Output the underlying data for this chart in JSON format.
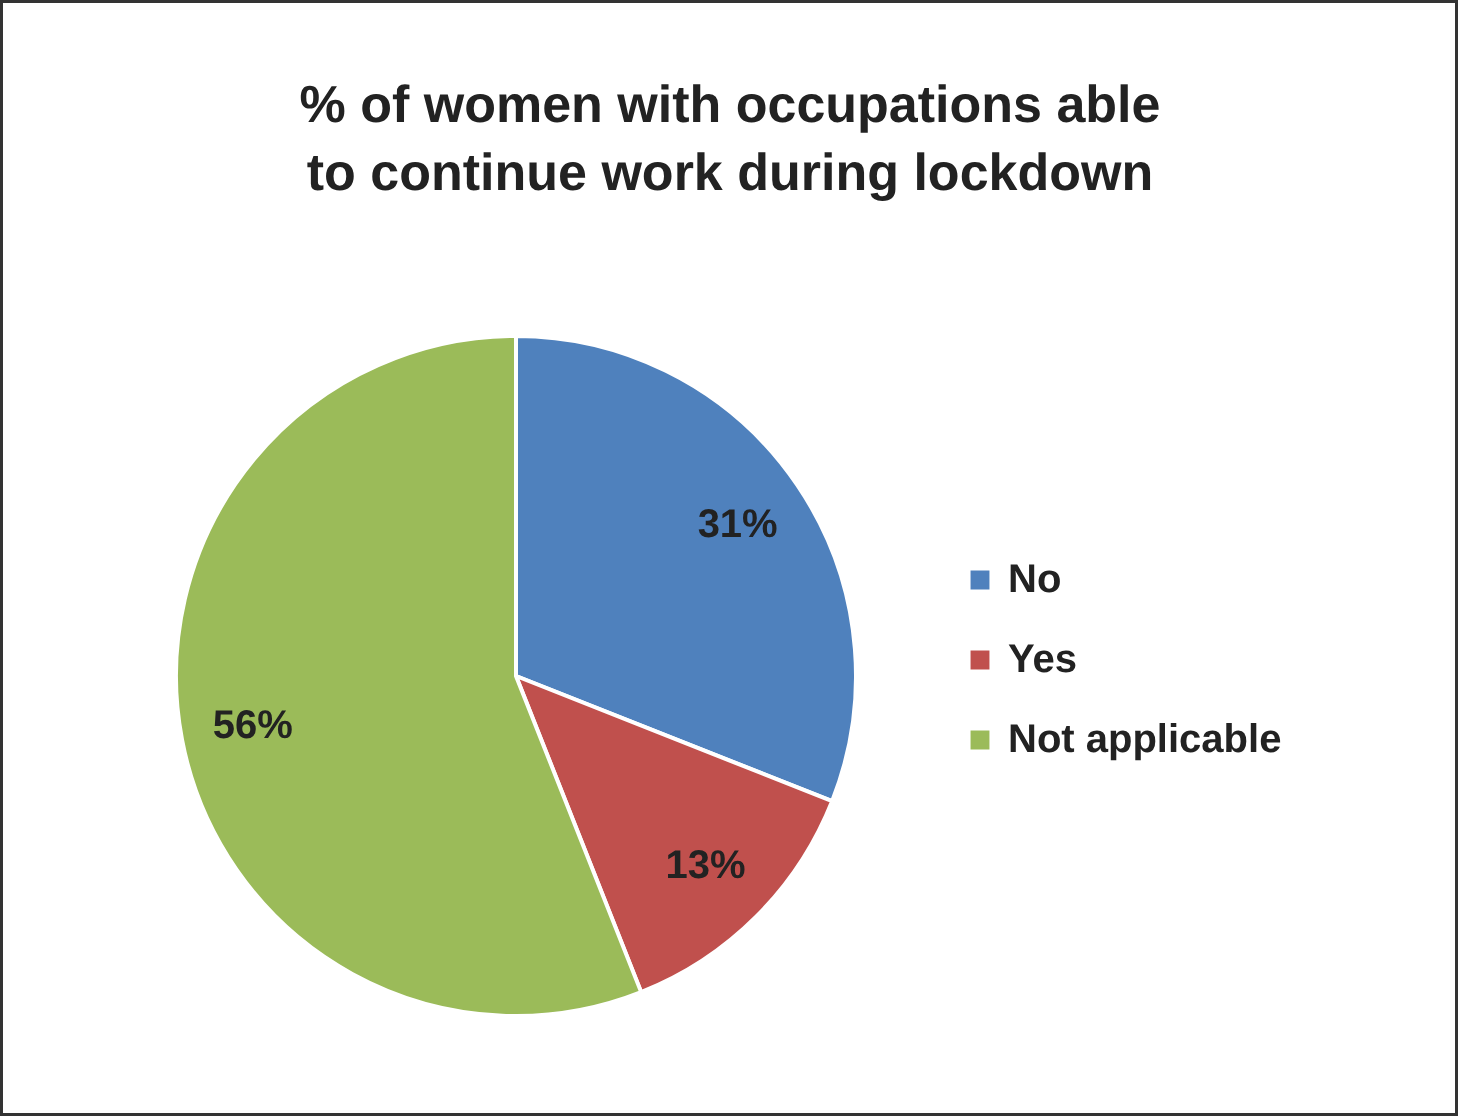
{
  "chart_data": {
    "type": "pie",
    "title": "% of women with occupations able\nto continue work during lockdown",
    "categories": [
      "No",
      "Yes",
      "Not applicable"
    ],
    "values": [
      31,
      13,
      56
    ],
    "colors": [
      "#4f81bd",
      "#c0504d",
      "#9bbb59"
    ],
    "value_labels": [
      "31%",
      "13%",
      "56%"
    ],
    "legend": "right"
  }
}
